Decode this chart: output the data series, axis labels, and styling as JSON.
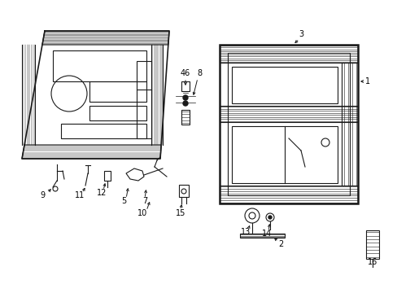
{
  "bg_color": "#ffffff",
  "line_color": "#1a1a1a",
  "fig_width": 4.89,
  "fig_height": 3.6,
  "dpi": 100,
  "label_fs": 7.0
}
